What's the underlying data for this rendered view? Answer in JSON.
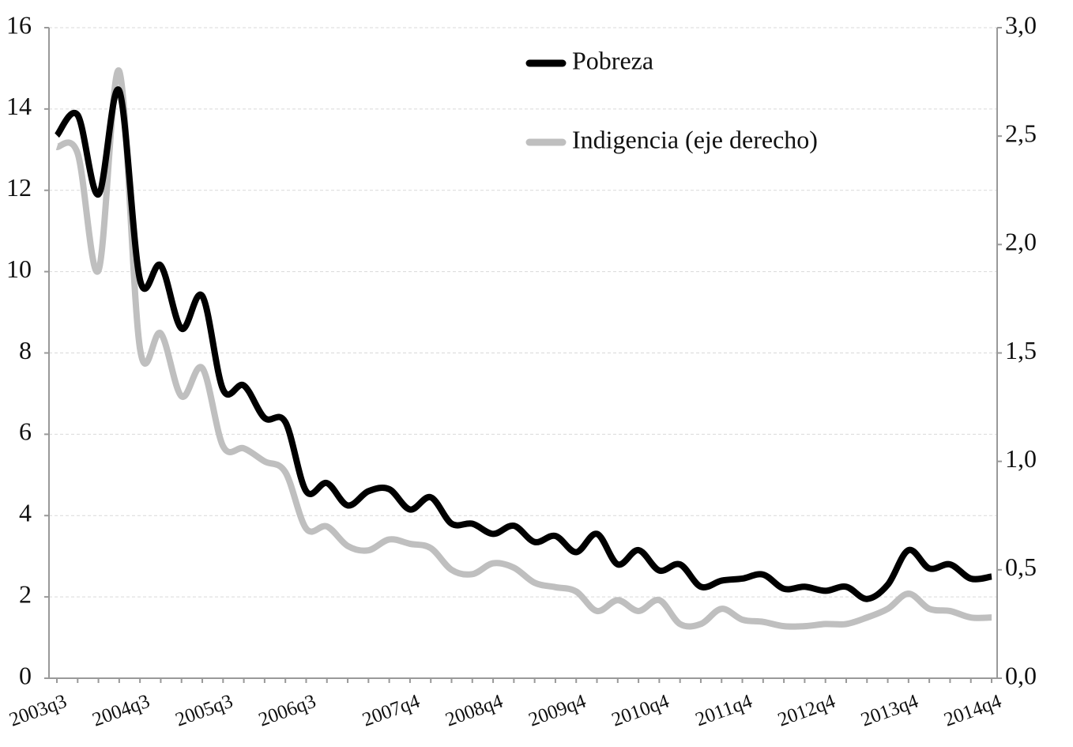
{
  "chart_data": {
    "type": "line",
    "categories": [
      "2003q3",
      null,
      null,
      null,
      "2004q3",
      null,
      null,
      null,
      "2005q3",
      null,
      null,
      null,
      "2006q3",
      null,
      null,
      null,
      null,
      "2007q4",
      null,
      null,
      null,
      "2008q4",
      null,
      null,
      null,
      "2009q4",
      null,
      null,
      null,
      "2010q4",
      null,
      null,
      null,
      "2011q4",
      null,
      null,
      null,
      "2012q4",
      null,
      null,
      null,
      "2013q4",
      null,
      null,
      null,
      "2014q4"
    ],
    "series": [
      {
        "name": "Pobreza",
        "color": "#000000",
        "values": [
          13.35,
          13.85,
          11.9,
          14.45,
          9.8,
          10.15,
          8.6,
          9.4,
          7.1,
          7.2,
          6.4,
          6.3,
          4.6,
          4.8,
          4.25,
          4.6,
          4.65,
          4.15,
          4.45,
          3.8,
          3.8,
          3.55,
          3.75,
          3.35,
          3.5,
          3.1,
          3.55,
          2.8,
          3.15,
          2.65,
          2.8,
          2.25,
          2.4,
          2.45,
          2.55,
          2.2,
          2.25,
          2.15,
          2.25,
          1.95,
          2.3,
          3.15,
          2.7,
          2.8,
          2.45,
          2.5
        ]
      },
      {
        "name": "Indigencia (eje derecho)",
        "color": "#bfbfbf",
        "axis": "y2",
        "values": [
          2.45,
          2.42,
          1.88,
          2.8,
          1.52,
          1.59,
          1.3,
          1.43,
          1.07,
          1.06,
          1.0,
          0.95,
          0.69,
          0.7,
          0.61,
          0.59,
          0.64,
          0.62,
          0.6,
          0.5,
          0.48,
          0.53,
          0.51,
          0.44,
          0.42,
          0.4,
          0.31,
          0.36,
          0.31,
          0.36,
          0.25,
          0.25,
          0.32,
          0.27,
          0.26,
          0.24,
          0.24,
          0.25,
          0.25,
          0.28,
          0.32,
          0.39,
          0.32,
          0.31,
          0.28,
          0.28
        ]
      }
    ],
    "ylim": [
      0,
      16
    ],
    "yticks": [
      0,
      2,
      4,
      6,
      8,
      10,
      12,
      14,
      16
    ],
    "y2lim": [
      0,
      3
    ],
    "y2ticks": [
      {
        "value": 0,
        "label": "0,0"
      },
      {
        "value": 0.5,
        "label": "0,5"
      },
      {
        "value": 1,
        "label": "1,0"
      },
      {
        "value": 1.5,
        "label": "1,5"
      },
      {
        "value": 2,
        "label": "2,0"
      },
      {
        "value": 2.5,
        "label": "2,5"
      },
      {
        "value": 3,
        "label": "3,0"
      }
    ],
    "grid": true,
    "legend": "top"
  }
}
